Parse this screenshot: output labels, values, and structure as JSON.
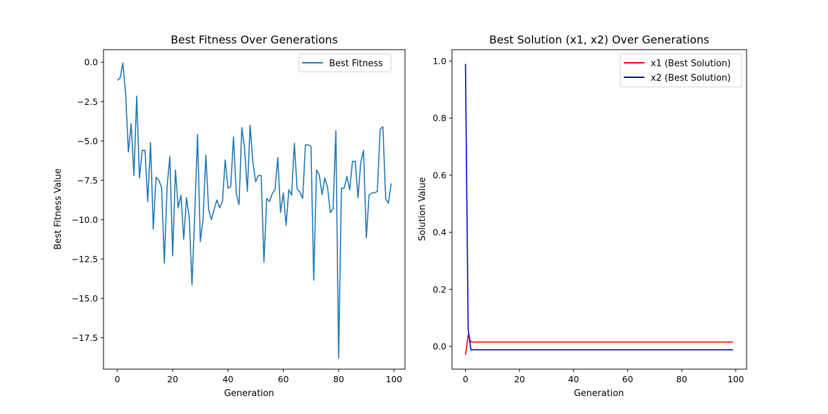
{
  "chart_data": [
    {
      "type": "line",
      "title": "Best Fitness Over Generations",
      "xlabel": "Generation",
      "ylabel": "Best Fitness Value",
      "xlim": [
        -5,
        104
      ],
      "ylim": [
        -19.5,
        0.8
      ],
      "xticks": [
        0,
        20,
        40,
        60,
        80,
        100
      ],
      "xtick_labels": [
        "0",
        "20",
        "40",
        "60",
        "80",
        "100"
      ],
      "yticks": [
        0,
        -2.5,
        -5,
        -7.5,
        -10,
        -12.5,
        -15,
        -17.5
      ],
      "ytick_labels": [
        "0.0",
        "−2.5",
        "−5.0",
        "−7.5",
        "−10.0",
        "−12.5",
        "−15.0",
        "−17.5"
      ],
      "grid": false,
      "legend": "top-right",
      "series": [
        {
          "name": "Best Fitness",
          "color": "#1f77b4",
          "x": [
            0,
            1,
            2,
            3,
            4,
            5,
            6,
            7,
            8,
            9,
            10,
            11,
            12,
            13,
            14,
            15,
            16,
            17,
            18,
            19,
            20,
            21,
            22,
            23,
            24,
            25,
            26,
            27,
            28,
            29,
            30,
            31,
            32,
            33,
            34,
            35,
            36,
            37,
            38,
            39,
            40,
            41,
            42,
            43,
            44,
            45,
            46,
            47,
            48,
            49,
            50,
            51,
            52,
            53,
            54,
            55,
            56,
            57,
            58,
            59,
            60,
            61,
            62,
            63,
            64,
            65,
            66,
            67,
            68,
            69,
            70,
            71,
            72,
            73,
            74,
            75,
            76,
            77,
            78,
            79,
            80,
            81,
            82,
            83,
            84,
            85,
            86,
            87,
            88,
            89,
            90,
            91,
            92,
            93,
            94,
            95,
            96,
            97,
            98,
            99
          ],
          "values": [
            -1.15,
            -1.0,
            -0.05,
            -2.0,
            -5.7,
            -3.9,
            -7.2,
            -2.15,
            -7.35,
            -5.6,
            -5.6,
            -8.85,
            -5.1,
            -10.6,
            -7.3,
            -7.5,
            -7.95,
            -12.75,
            -7.85,
            -6.0,
            -12.3,
            -6.85,
            -9.25,
            -8.45,
            -11.25,
            -8.6,
            -9.9,
            -14.15,
            -9.55,
            -4.6,
            -11.4,
            -9.95,
            -5.9,
            -9.35,
            -10.0,
            -9.35,
            -8.75,
            -9.25,
            -8.85,
            -6.2,
            -8.0,
            -7.9,
            -4.75,
            -8.35,
            -9.05,
            -4.15,
            -5.45,
            -8.2,
            -4.0,
            -6.35,
            -7.6,
            -7.2,
            -7.2,
            -12.7,
            -8.65,
            -8.85,
            -8.35,
            -8.1,
            -6.05,
            -9.55,
            -8.3,
            -10.35,
            -8.1,
            -8.45,
            -5.15,
            -8.05,
            -8.25,
            -8.65,
            -5.25,
            -5.25,
            -5.35,
            -13.85,
            -6.85,
            -7.15,
            -8.4,
            -7.35,
            -7.95,
            -9.55,
            -9.3,
            -4.35,
            -18.8,
            -8.0,
            -8.0,
            -7.25,
            -8.1,
            -6.3,
            -6.3,
            -8.6,
            -6.35,
            -5.6,
            -11.15,
            -8.45,
            -8.3,
            -8.3,
            -8.2,
            -4.25,
            -4.1,
            -8.7,
            -8.95,
            -7.7
          ]
        }
      ]
    },
    {
      "type": "line",
      "title": "Best Solution (x1, x2) Over Generations",
      "xlabel": "Generation",
      "ylabel": "Solution Value",
      "xlim": [
        -5,
        104
      ],
      "ylim": [
        -0.08,
        1.04
      ],
      "xticks": [
        0,
        20,
        40,
        60,
        80,
        100
      ],
      "xtick_labels": [
        "0",
        "20",
        "40",
        "60",
        "80",
        "100"
      ],
      "yticks": [
        0.0,
        0.2,
        0.4,
        0.6,
        0.8,
        1.0
      ],
      "ytick_labels": [
        "0.0",
        "0.2",
        "0.4",
        "0.6",
        "0.8",
        "1.0"
      ],
      "grid": false,
      "legend": "top-right",
      "series": [
        {
          "name": "x1 (Best Solution)",
          "color": "#ff0000",
          "x": [
            0,
            1,
            2,
            99
          ],
          "values": [
            -0.03,
            0.04,
            0.015,
            0.015
          ]
        },
        {
          "name": "x2 (Best Solution)",
          "color": "#0000cc",
          "x": [
            0,
            1,
            2,
            99
          ],
          "values": [
            0.99,
            0.06,
            -0.012,
            -0.012
          ]
        }
      ]
    }
  ]
}
